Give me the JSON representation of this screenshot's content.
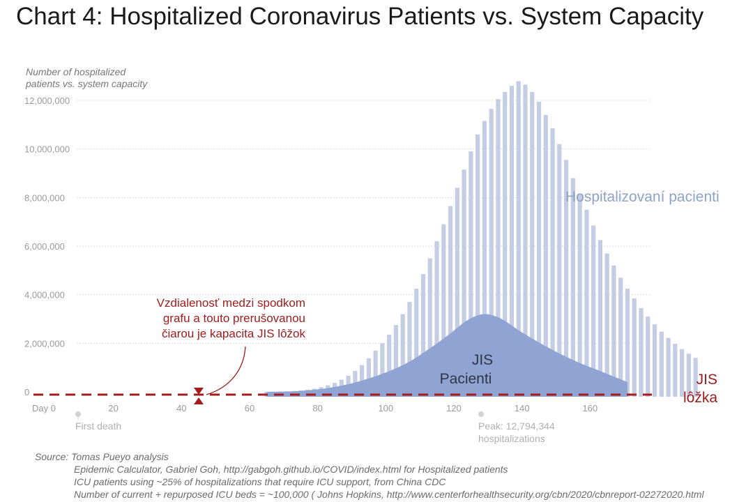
{
  "title": "Chart 4: Hospitalized Coronavirus Patients vs. System Capacity",
  "source": {
    "label": "Source: Tomas Pueyo analysis",
    "lines": [
      "Epidemic Calculator, Gabriel Goh, http://gabgoh.github.io/COVID/index.html for Hospitalized patients",
      "ICU patients using ~25% of hospitalizations that require ICU support, from China CDC",
      "Number of current + repurposed ICU beds = ~100,000 ( Johns Hopkins, http://www.centerforhealthsecurity.org/cbn/2020/cbnreport-02272020.html"
    ]
  },
  "colors": {
    "bars": "#c4cde3",
    "icu_area": "#90a4d4",
    "beds_line": "#a31d1d",
    "grid": "#dddddd"
  },
  "chart_data": {
    "type": "bar",
    "ylabel": [
      "Number of hospitalized",
      "patients vs. system capacity"
    ],
    "ylim": [
      0,
      12000000
    ],
    "yticks": [
      0,
      2000000,
      4000000,
      6000000,
      8000000,
      10000000,
      12000000
    ],
    "ytick_labels": [
      "0",
      "2,000,000",
      "4,000,000",
      "6,000,000",
      "8,000,000",
      "10,000,000",
      "12,000,000"
    ],
    "xlim": [
      0,
      180
    ],
    "xticks": [
      0,
      20,
      40,
      60,
      80,
      100,
      120,
      140,
      160
    ],
    "xtick_labels": [
      "Day 0",
      "20",
      "40",
      "60",
      "80",
      "100",
      "120",
      "140",
      "160"
    ],
    "series": [
      {
        "name": "Hospitalizovaní pacienti",
        "type": "bar",
        "x_start": 65,
        "x_step": 2,
        "values": [
          5000,
          8000,
          14000,
          22000,
          35000,
          55000,
          85000,
          130000,
          190000,
          270000,
          370000,
          500000,
          660000,
          860000,
          1100000,
          1380000,
          1700000,
          2000000,
          2350000,
          2750000,
          3200000,
          3700000,
          4250000,
          4850000,
          5500000,
          6200000,
          6900000,
          7650000,
          8400000,
          9150000,
          9900000,
          10600000,
          11150000,
          11650000,
          12050000,
          12350000,
          12600000,
          12794344,
          12650000,
          12350000,
          11950000,
          11400000,
          10850000,
          10200000,
          9550000,
          8800000,
          8150000,
          7500000,
          6850000,
          6250000,
          5700000,
          5200000,
          4700000,
          4250000,
          3850000,
          3450000,
          3100000,
          2780000,
          2480000,
          2220000,
          1980000,
          1760000,
          1570000,
          1400000
        ]
      },
      {
        "name": "JIS Pacienti",
        "type": "area",
        "x": [
          65,
          75,
          85,
          95,
          105,
          112,
          118,
          124,
          129,
          134,
          140,
          148,
          156,
          164,
          171
        ],
        "values": [
          0,
          40000,
          200000,
          550000,
          1100000,
          1700000,
          2300000,
          2950000,
          3200000,
          3000000,
          2450000,
          1800000,
          1250000,
          800000,
          400000
        ]
      }
    ],
    "capacity_line": {
      "name": "JIS lôžka",
      "label_lines": [
        "JIS",
        "lôžka"
      ],
      "value": 100000
    },
    "annotations": {
      "capacity_note": [
        "Vzdialenosť medzi spodkom",
        "grafu a touto prerušovanou",
        "čiarou je kapacita JIS lôžok"
      ],
      "first_death": {
        "x": 13,
        "label": "First death"
      },
      "peak": {
        "x": 130,
        "label": [
          "Peak: 12,794,344",
          "hospitalizations"
        ]
      }
    }
  }
}
